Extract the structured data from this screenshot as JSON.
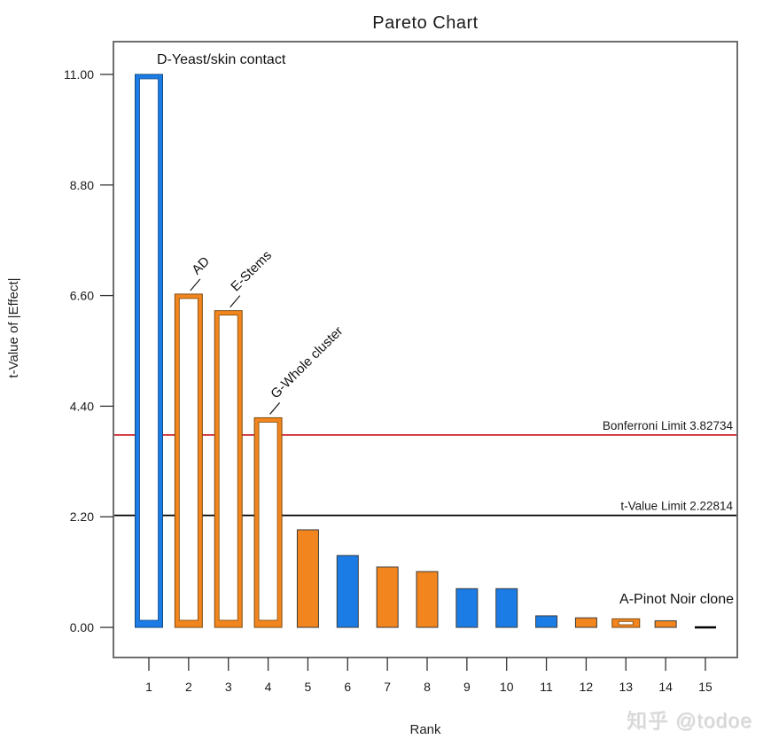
{
  "title": "Pareto Chart",
  "watermark": "知乎 @todoe",
  "chart_data": {
    "type": "bar",
    "title": "Pareto Chart",
    "xlabel": "Rank",
    "ylabel": "t-Value of |Effect|",
    "yticks": [
      "0.00",
      "2.20",
      "4.40",
      "6.60",
      "8.80",
      "11.00"
    ],
    "ylim": [
      0,
      11.6
    ],
    "grid": false,
    "colors": {
      "blue": "#1b7ce6",
      "orange": "#f2851d",
      "blue_dark": "#15497f",
      "orange_dark": "#7c4a10",
      "solid_stroke": "#3b3b3b",
      "frame": "#6e6e6e",
      "red_line": "#cc2027",
      "black_line": "#000000",
      "text": "#1a1a1a"
    },
    "bars": [
      {
        "rank": 1,
        "value": 11.0,
        "color": "blue",
        "style": "outline",
        "label": "D-Yeast/skin contact"
      },
      {
        "rank": 2,
        "value": 6.63,
        "color": "orange",
        "style": "outline",
        "label": "AD",
        "leader": true
      },
      {
        "rank": 3,
        "value": 6.3,
        "color": "orange",
        "style": "outline",
        "label": "E-Stems",
        "leader": true
      },
      {
        "rank": 4,
        "value": 4.17,
        "color": "orange",
        "style": "outline",
        "label": "G-Whole cluster",
        "leader": true
      },
      {
        "rank": 5,
        "value": 1.94,
        "color": "orange",
        "style": "solid"
      },
      {
        "rank": 6,
        "value": 1.43,
        "color": "blue",
        "style": "solid"
      },
      {
        "rank": 7,
        "value": 1.2,
        "color": "orange",
        "style": "solid"
      },
      {
        "rank": 8,
        "value": 1.11,
        "color": "orange",
        "style": "solid"
      },
      {
        "rank": 9,
        "value": 0.77,
        "color": "blue",
        "style": "solid"
      },
      {
        "rank": 10,
        "value": 0.77,
        "color": "blue",
        "style": "solid"
      },
      {
        "rank": 11,
        "value": 0.23,
        "color": "blue",
        "style": "solid"
      },
      {
        "rank": 12,
        "value": 0.19,
        "color": "orange",
        "style": "solid"
      },
      {
        "rank": 13,
        "value": 0.17,
        "color": "orange",
        "style": "outline",
        "label": "A-Pinot Noir clone"
      },
      {
        "rank": 14,
        "value": 0.13,
        "color": "orange",
        "style": "solid"
      },
      {
        "rank": 15,
        "value": 0.0,
        "color": "black",
        "style": "dash"
      }
    ],
    "limit_lines": [
      {
        "label": "Bonferroni Limit 3.82734",
        "value": 3.82734,
        "color": "#cc2027"
      },
      {
        "label": "t-Value Limit 2.22814",
        "value": 2.22814,
        "color": "#000000"
      }
    ],
    "annotations": {
      "bar1": {
        "label": "D-Yeast/skin contact"
      },
      "bar2": {
        "label": "AD"
      },
      "bar3": {
        "label": "E-Stems"
      },
      "bar4": {
        "label": "G-Whole cluster"
      },
      "bar13": {
        "label": "A-Pinot Noir clone"
      }
    }
  }
}
